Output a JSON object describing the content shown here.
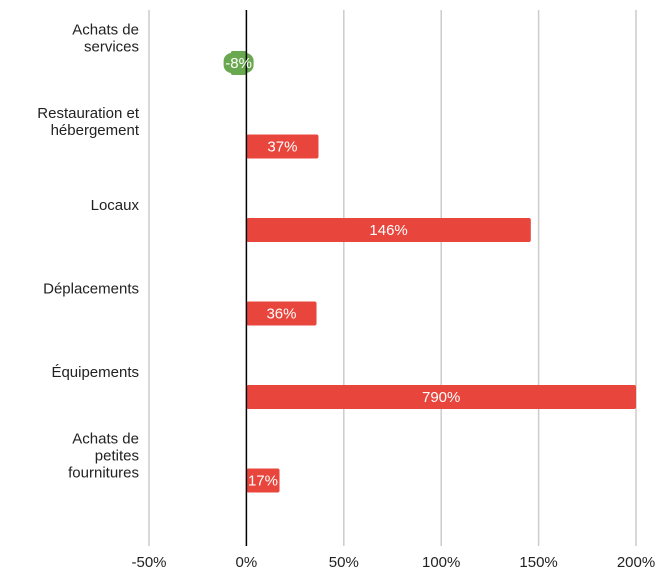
{
  "chart_data": {
    "type": "bar",
    "orientation": "horizontal",
    "title": "",
    "xlabel": "",
    "ylabel": "",
    "xlim": [
      -50,
      200
    ],
    "x_ticks": [
      -50,
      0,
      50,
      100,
      150,
      200
    ],
    "x_tick_labels": [
      "-50%",
      "0%",
      "50%",
      "100%",
      "150%",
      "200%"
    ],
    "grid": "vertical",
    "categories": [
      "Achats de services",
      "Restauration et hébergement",
      "Locaux",
      "Déplacements",
      "Équipements",
      "Achats de petites fournitures"
    ],
    "category_lines": [
      [
        "Achats de",
        "services"
      ],
      [
        "Restauration et",
        "hébergement"
      ],
      [
        "Locaux"
      ],
      [
        "Déplacements"
      ],
      [
        "Équipements"
      ],
      [
        "Achats de",
        "petites",
        "fournitures"
      ]
    ],
    "values": [
      -8,
      37,
      146,
      36,
      790,
      17
    ],
    "value_labels": [
      "-8%",
      "37%",
      "146%",
      "36%",
      "790%",
      "17%"
    ],
    "colors": {
      "negative": "#6aa84f",
      "positive": "#e8453c",
      "grid": "#cccccc",
      "zero_line": "#000000"
    }
  }
}
